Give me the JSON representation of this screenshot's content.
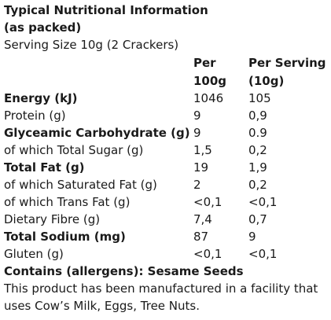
{
  "title_line1": "Typical Nutritional Information",
  "title_line2": "(as packed)",
  "serving_size": "Serving Size 10g (2 Crackers)",
  "columns": {
    "per_100g_line1": "Per",
    "per_100g_line2": "100g",
    "per_serving_line1": "Per Serving",
    "per_serving_line2": "(10g)"
  },
  "rows": [
    {
      "label": "Energy (kJ)",
      "per_100g": "1046",
      "per_serving": "105",
      "bold": true
    },
    {
      "label": "Protein (g)",
      "per_100g": "9",
      "per_serving": "0,9",
      "bold": false
    },
    {
      "label": "Glyceamic Carbohydrate (g)",
      "per_100g": "9",
      "per_serving": "0.9",
      "bold": true
    },
    {
      "label": "of which Total Sugar (g)",
      "per_100g": "1,5",
      "per_serving": "0,2",
      "bold": false
    },
    {
      "label": "Total Fat (g)",
      "per_100g": "19",
      "per_serving": "1,9",
      "bold": true
    },
    {
      "label": "of which Saturated Fat (g)",
      "per_100g": "2",
      "per_serving": "0,2",
      "bold": false
    },
    {
      "label": "of which Trans Fat (g)",
      "per_100g": "<0,1",
      "per_serving": "<0,1",
      "bold": false
    },
    {
      "label": "Dietary Fibre (g)",
      "per_100g": "7,4",
      "per_serving": "0,7",
      "bold": false
    },
    {
      "label": "Total Sodium (mg)",
      "per_100g": "87",
      "per_serving": "9",
      "bold": true
    },
    {
      "label": "Gluten (g)",
      "per_100g": "<0,1",
      "per_serving": "<0,1",
      "bold": false
    }
  ],
  "allergens": "Contains (allergens): Sesame Seeds",
  "facility_line1": "This product has been manufactured in a facility that",
  "facility_line2": "uses Cow’s Milk, Eggs, Tree Nuts."
}
